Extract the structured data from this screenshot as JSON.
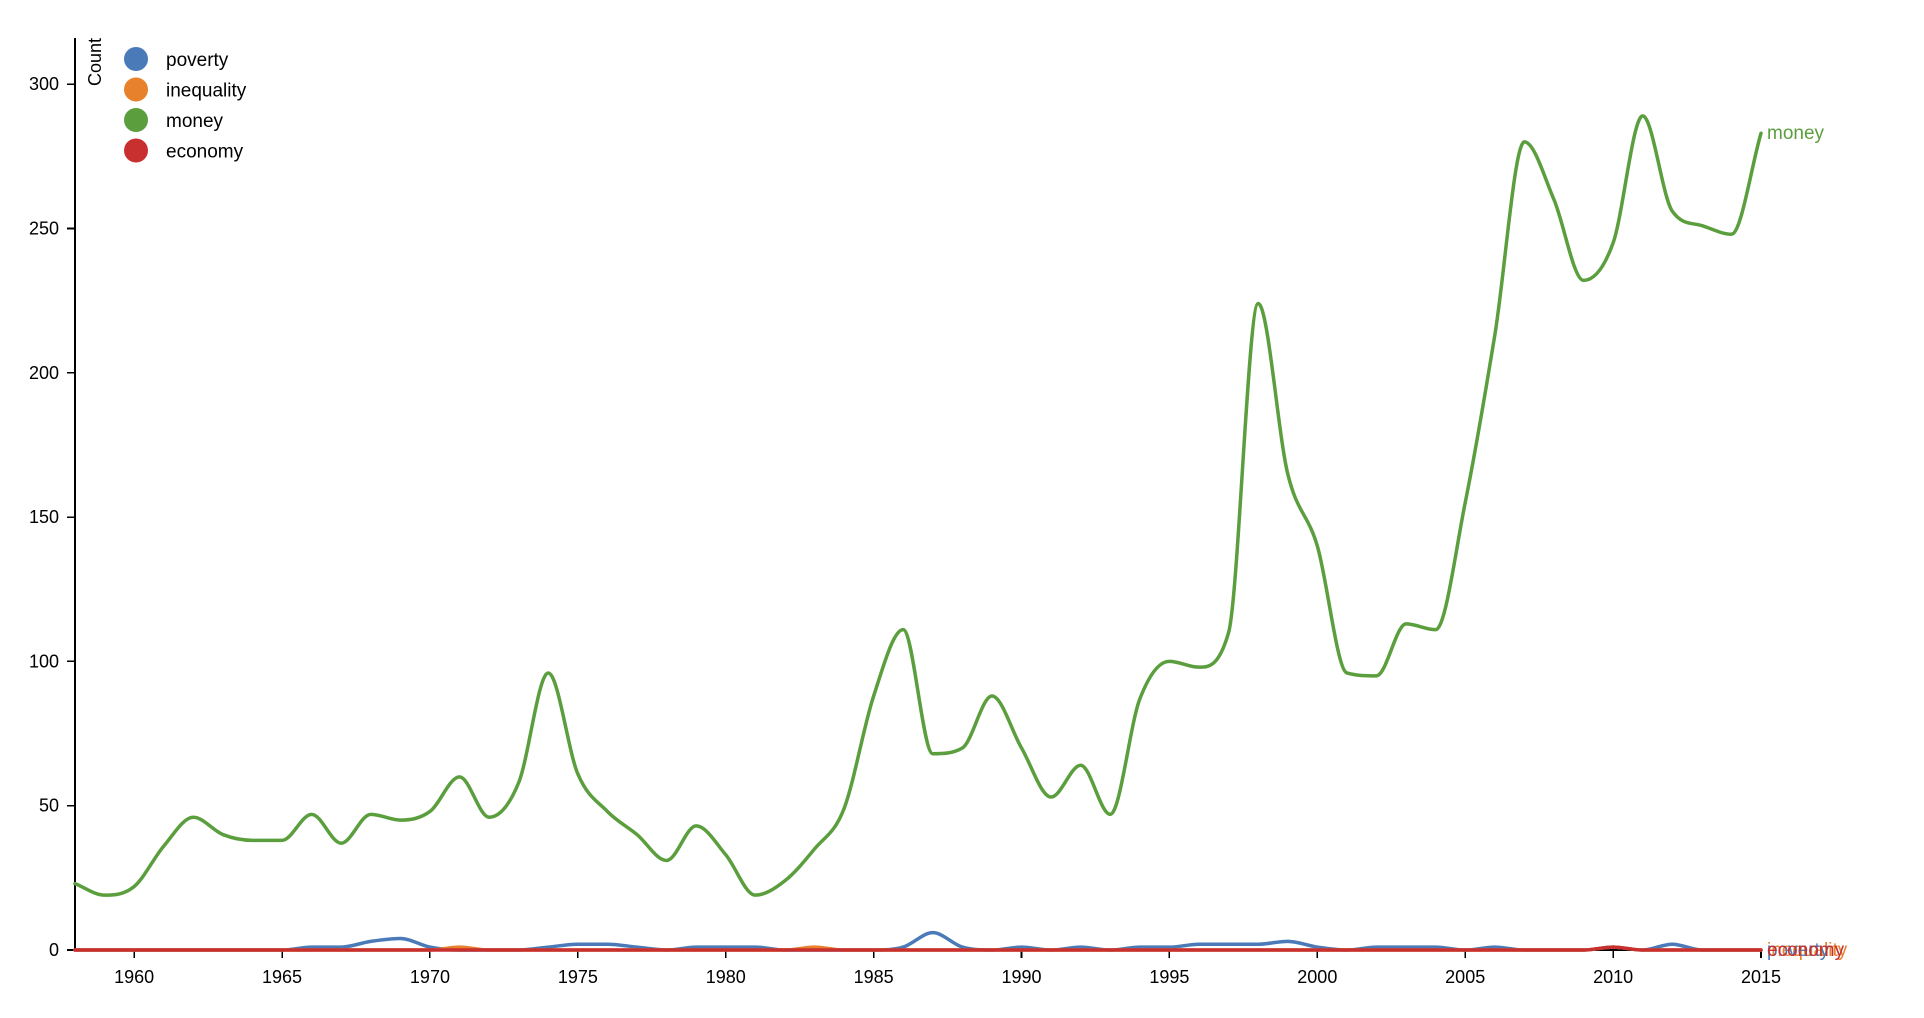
{
  "chart_data": {
    "type": "line",
    "title": "",
    "xlabel": "",
    "ylabel": "Count",
    "xlim": [
      1958,
      2015
    ],
    "ylim": [
      0,
      316
    ],
    "x_ticks": [
      1960,
      1965,
      1970,
      1975,
      1980,
      1985,
      1990,
      1995,
      2000,
      2005,
      2010,
      2015
    ],
    "y_ticks": [
      0,
      50,
      100,
      150,
      200,
      250,
      300
    ],
    "legend_position": "top-left",
    "grid": false,
    "x": [
      1958,
      1959,
      1960,
      1961,
      1962,
      1963,
      1964,
      1965,
      1966,
      1967,
      1968,
      1969,
      1970,
      1971,
      1972,
      1973,
      1974,
      1975,
      1976,
      1977,
      1978,
      1979,
      1980,
      1981,
      1982,
      1983,
      1984,
      1985,
      1986,
      1987,
      1988,
      1989,
      1990,
      1991,
      1992,
      1993,
      1994,
      1995,
      1996,
      1997,
      1998,
      1999,
      2000,
      2001,
      2002,
      2003,
      2004,
      2005,
      2006,
      2007,
      2008,
      2009,
      2010,
      2011,
      2012,
      2013,
      2014,
      2015
    ],
    "series": [
      {
        "name": "poverty",
        "color": "#4a7ab7",
        "values": [
          0,
          0,
          0,
          0,
          0,
          0,
          0,
          0,
          1,
          1,
          3,
          4,
          1,
          0,
          0,
          0,
          1,
          2,
          2,
          1,
          0,
          1,
          1,
          1,
          0,
          0,
          0,
          0,
          1,
          6,
          1,
          0,
          1,
          0,
          1,
          0,
          1,
          1,
          2,
          2,
          2,
          3,
          1,
          0,
          1,
          1,
          1,
          0,
          1,
          0,
          0,
          0,
          1,
          0,
          2,
          0,
          0,
          0
        ]
      },
      {
        "name": "inequality",
        "color": "#e8812b",
        "values": [
          0,
          0,
          0,
          0,
          0,
          0,
          0,
          0,
          0,
          0,
          0,
          0,
          0,
          1,
          0,
          0,
          0,
          0,
          0,
          0,
          0,
          0,
          0,
          0,
          0,
          1,
          0,
          0,
          0,
          0,
          0,
          0,
          0,
          0,
          0,
          0,
          0,
          0,
          0,
          0,
          0,
          0,
          0,
          0,
          0,
          0,
          0,
          0,
          0,
          0,
          0,
          0,
          1,
          0,
          0,
          0,
          0,
          0
        ]
      },
      {
        "name": "money",
        "color": "#5b9e3d",
        "values": [
          23,
          19,
          22,
          36,
          46,
          40,
          38,
          38,
          47,
          37,
          47,
          45,
          48,
          60,
          46,
          58,
          96,
          61,
          48,
          40,
          31,
          43,
          33,
          19,
          24,
          35,
          49,
          88,
          111,
          68,
          70,
          88,
          70,
          53,
          64,
          47,
          87,
          100,
          98,
          110,
          224,
          165,
          140,
          96,
          95,
          113,
          111,
          155,
          213,
          280,
          260,
          232,
          245,
          289,
          256,
          251,
          248,
          283
        ]
      },
      {
        "name": "economy",
        "color": "#c83030",
        "values": [
          0,
          0,
          0,
          0,
          0,
          0,
          0,
          0,
          0,
          0,
          0,
          0,
          0,
          0,
          0,
          0,
          0,
          0,
          0,
          0,
          0,
          0,
          0,
          0,
          0,
          0,
          0,
          0,
          0,
          0,
          0,
          0,
          0,
          0,
          0,
          0,
          0,
          0,
          0,
          0,
          0,
          0,
          0,
          0,
          0,
          0,
          0,
          0,
          0,
          0,
          0,
          0,
          1,
          0,
          0,
          0,
          0,
          0
        ]
      }
    ]
  }
}
